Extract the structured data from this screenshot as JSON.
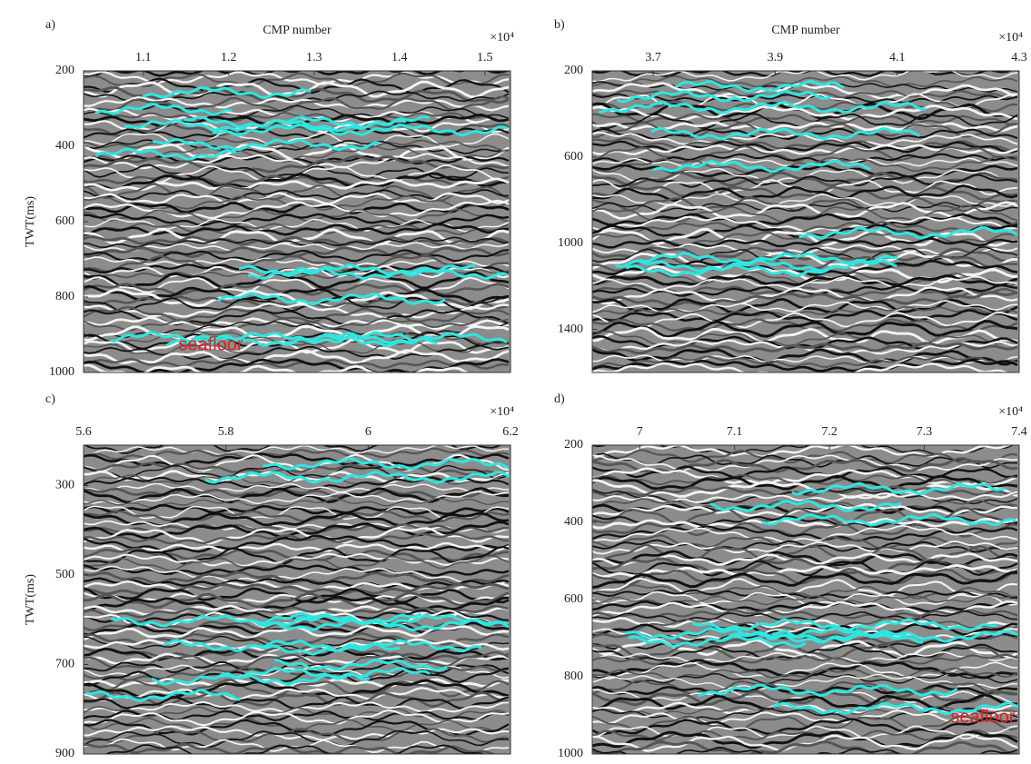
{
  "chart_data": [
    {
      "type": "seismic",
      "panel": "a)",
      "xlabel": "CMP number",
      "ylabel": "TWT(ms)",
      "x_multiplier": "×10⁴",
      "xlim": [
        1.03,
        1.53
      ],
      "xticks": [
        1.1,
        1.2,
        1.3,
        1.4,
        1.5
      ],
      "ylim": [
        200,
        1000
      ],
      "yticks": [
        200,
        400,
        600,
        800,
        1000
      ],
      "annotation": "seafloor"
    },
    {
      "type": "seismic",
      "panel": "b)",
      "xlabel": "CMP number",
      "x_multiplier": "×10⁴",
      "xlim": [
        3.6,
        4.3
      ],
      "xticks": [
        3.7,
        3.9,
        4.1,
        4.3
      ],
      "ylim": [
        200,
        1600
      ],
      "yticks": [
        200,
        600,
        1000,
        1400
      ]
    },
    {
      "type": "seismic",
      "panel": "c)",
      "ylabel": "TWT(ms)",
      "x_multiplier": "×10⁴",
      "xlim": [
        5.6,
        6.2
      ],
      "xticks": [
        5.6,
        5.8,
        6.0,
        6.2
      ],
      "ylim": [
        210,
        900
      ],
      "yticks": [
        300,
        500,
        700,
        900
      ]
    },
    {
      "type": "seismic",
      "panel": "d)",
      "x_multiplier": "×10⁴",
      "xlim": [
        6.95,
        7.4
      ],
      "xticks": [
        7.0,
        7.1,
        7.2,
        7.3,
        7.4
      ],
      "ylim": [
        200,
        1000
      ],
      "yticks": [
        200,
        400,
        600,
        800,
        1000
      ],
      "annotation": "seafloor"
    }
  ]
}
